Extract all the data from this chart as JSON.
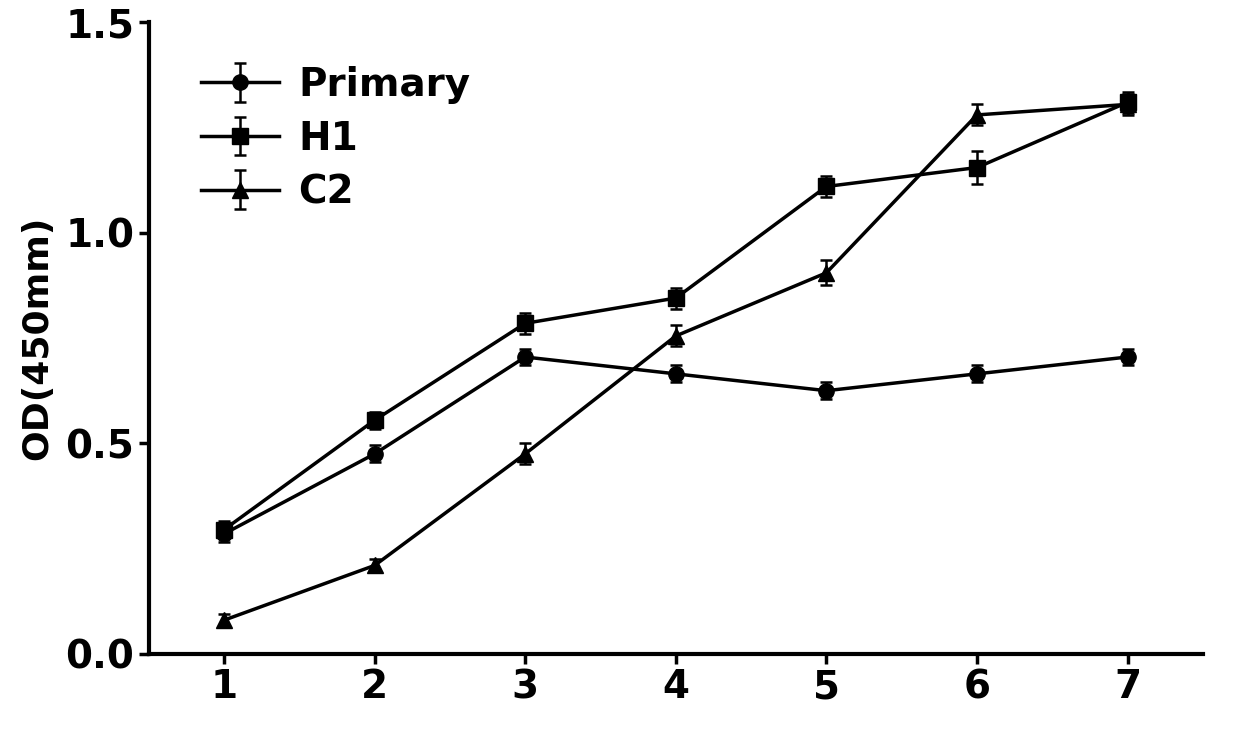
{
  "x": [
    1,
    2,
    3,
    4,
    5,
    6,
    7
  ],
  "primary_y": [
    0.285,
    0.475,
    0.705,
    0.665,
    0.625,
    0.665,
    0.705
  ],
  "primary_err": [
    0.02,
    0.02,
    0.02,
    0.02,
    0.02,
    0.02,
    0.02
  ],
  "H1_y": [
    0.295,
    0.555,
    0.785,
    0.845,
    1.11,
    1.155,
    1.31
  ],
  "H1_err": [
    0.02,
    0.02,
    0.025,
    0.025,
    0.025,
    0.04,
    0.025
  ],
  "C2_y": [
    0.08,
    0.21,
    0.475,
    0.755,
    0.905,
    1.28,
    1.305
  ],
  "C2_err": [
    0.015,
    0.015,
    0.025,
    0.025,
    0.03,
    0.025,
    0.025
  ],
  "ylabel": "OD(450mm)",
  "ylim": [
    0.0,
    1.5
  ],
  "yticks": [
    0.0,
    0.5,
    1.0,
    1.5
  ],
  "xlim": [
    0.5,
    7.5
  ],
  "xticks": [
    1,
    2,
    3,
    4,
    5,
    6,
    7
  ],
  "line_color": "#000000",
  "background_color": "#ffffff",
  "legend_labels": [
    "Primary",
    "H1",
    "C2"
  ],
  "marker_primary": "o",
  "marker_H1": "s",
  "marker_C2": "^",
  "markersize": 11,
  "linewidth": 2.5,
  "capsize": 4,
  "legend_fontsize": 28,
  "axis_fontsize": 26,
  "tick_fontsize": 28
}
